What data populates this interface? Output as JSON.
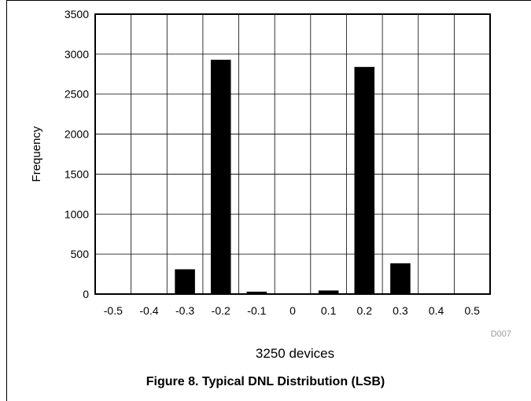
{
  "figure_caption": "Figure 8. Typical DNL Distribution (LSB)",
  "figure_id": "D007",
  "chart_data": {
    "type": "bar",
    "categories": [
      "-0.5",
      "-0.4",
      "-0.3",
      "-0.2",
      "-0.1",
      "0",
      "0.1",
      "0.2",
      "0.3",
      "0.4",
      "0.5"
    ],
    "series": [
      {
        "values": [
          0,
          0,
          310,
          2930,
          30,
          0,
          45,
          2840,
          385,
          0,
          0
        ]
      }
    ],
    "xlabel": "3250 devices",
    "ylabel": "Frequency",
    "ylim": [
      0,
      3500
    ],
    "yticks": [
      0,
      500,
      1000,
      1500,
      2000,
      2500,
      3000,
      3500
    ],
    "grid": true,
    "bar_color": "#000000",
    "grid_color": "#000000"
  }
}
